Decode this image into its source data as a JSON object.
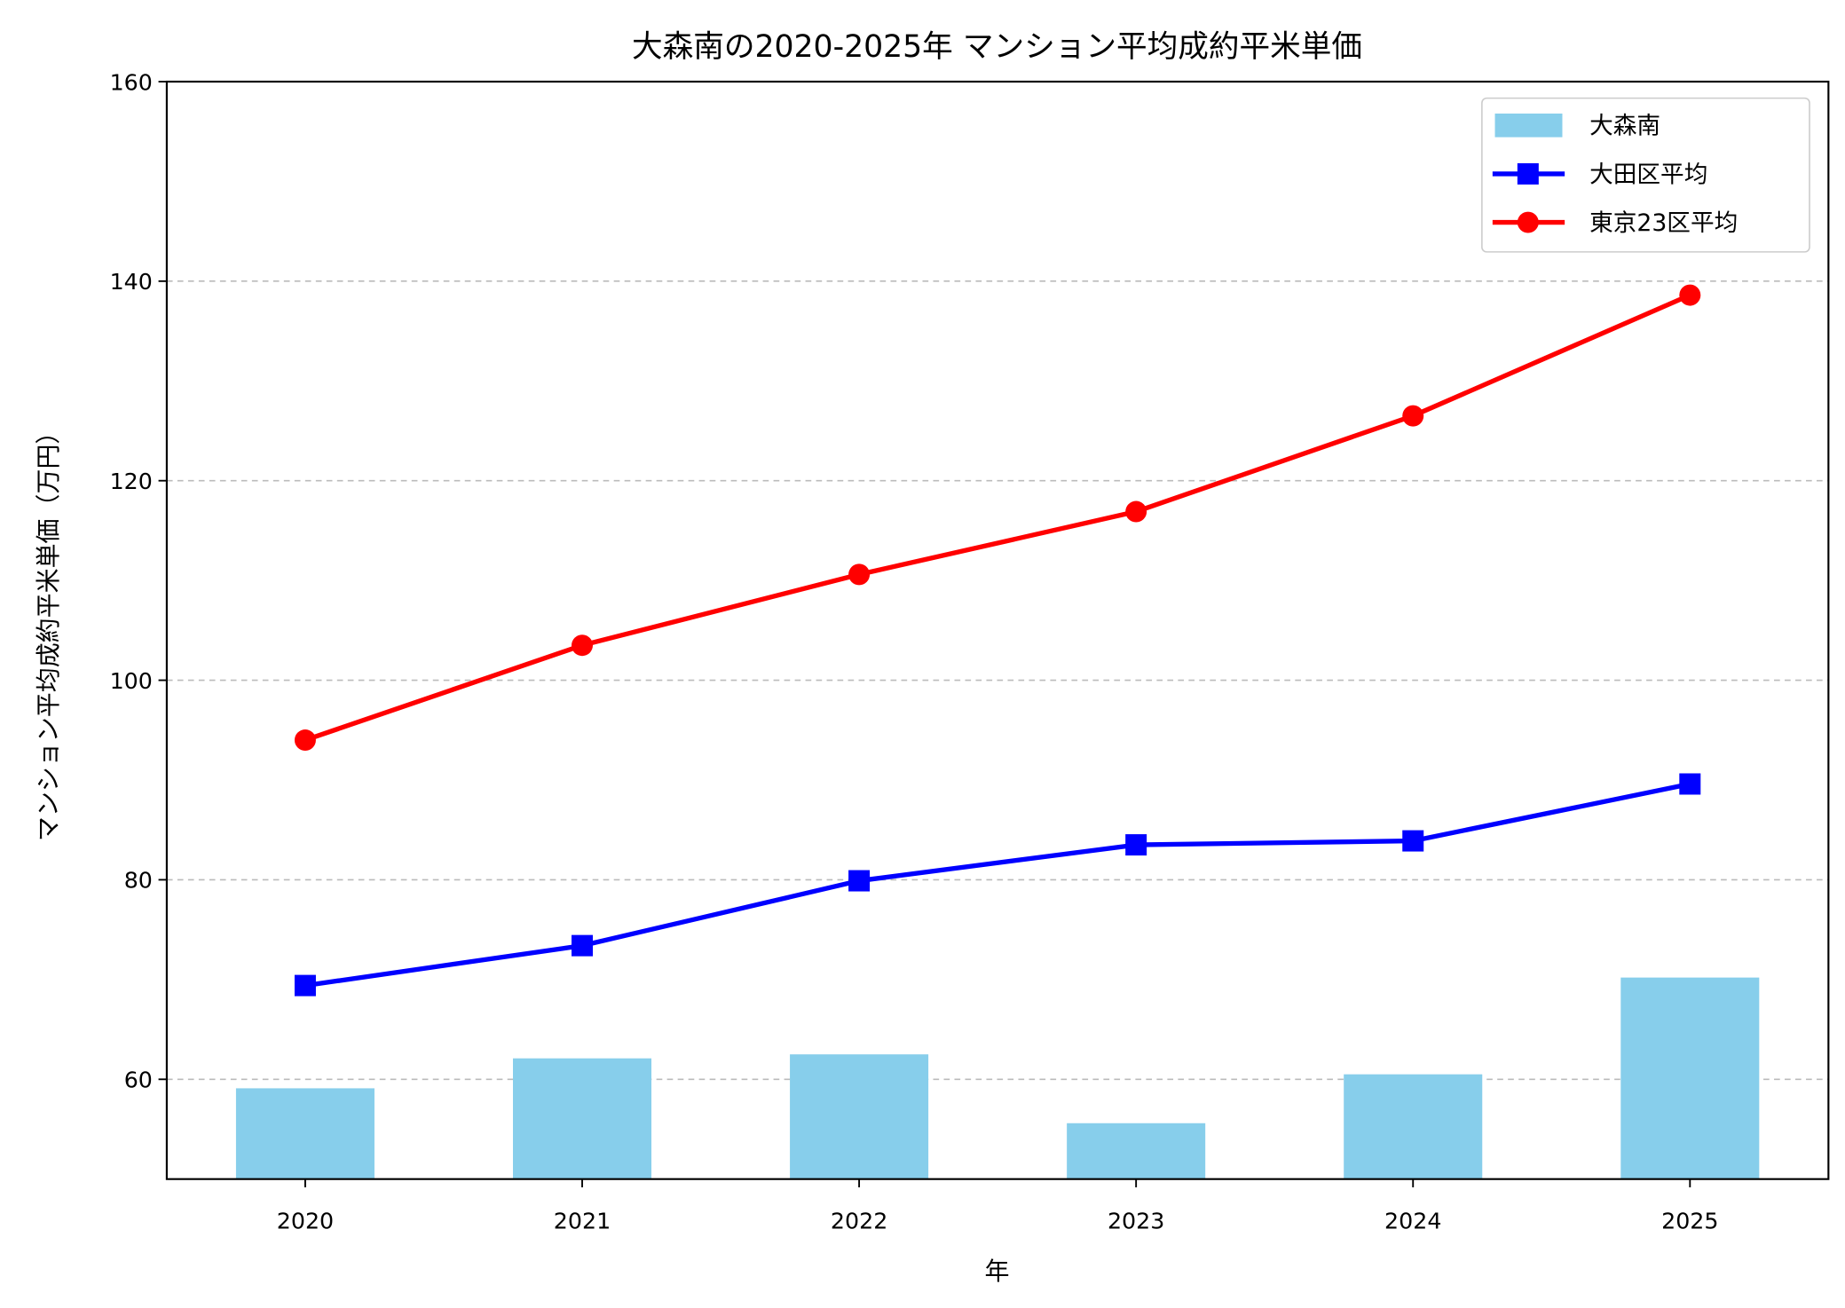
{
  "chart_data": {
    "type": "bar+line",
    "title": "大森南の2020-2025年 マンション平均成約平米単価",
    "xlabel": "年",
    "ylabel": "マンション平均成約平米単価（万円）",
    "categories": [
      "2020",
      "2021",
      "2022",
      "2023",
      "2024",
      "2025"
    ],
    "ylim": [
      50,
      160
    ],
    "yticks": [
      60,
      80,
      100,
      120,
      140,
      160
    ],
    "grid": "y-dashed",
    "legend_position": "top-right",
    "series": [
      {
        "name": "大森南",
        "kind": "bar",
        "color": "#87CEEB",
        "values": [
          59.1,
          62.1,
          62.5,
          55.6,
          60.5,
          70.2
        ]
      },
      {
        "name": "大田区平均",
        "kind": "line",
        "marker": "square",
        "color": "#0000FF",
        "values": [
          69.4,
          73.4,
          79.9,
          83.5,
          83.9,
          89.6
        ]
      },
      {
        "name": "東京23区平均",
        "kind": "line",
        "marker": "circle",
        "color": "#FF0000",
        "values": [
          94.0,
          103.5,
          110.6,
          116.9,
          126.5,
          138.6
        ]
      }
    ]
  }
}
